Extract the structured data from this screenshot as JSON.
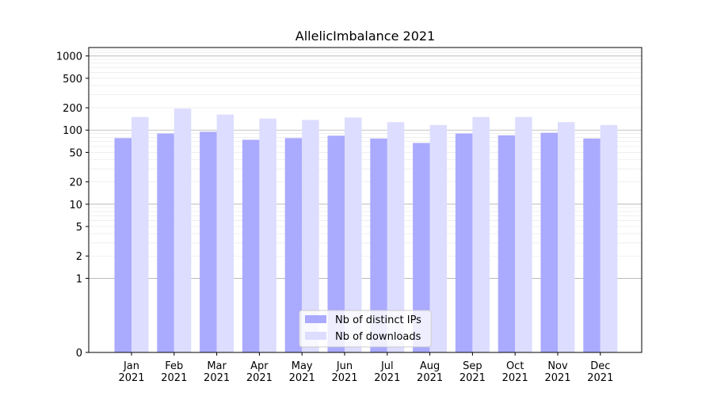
{
  "chart_data": {
    "type": "bar",
    "title": "AllelicImbalance 2021",
    "xlabel": "",
    "ylabel": "",
    "yscale": "symlog",
    "ylim": [
      0,
      1300
    ],
    "yticks": [
      0,
      1,
      2,
      5,
      10,
      20,
      50,
      100,
      200,
      500,
      1000
    ],
    "categories": [
      "Jan\n2021",
      "Feb\n2021",
      "Mar\n2021",
      "Apr\n2021",
      "May\n2021",
      "Jun\n2021",
      "Jul\n2021",
      "Aug\n2021",
      "Sep\n2021",
      "Oct\n2021",
      "Nov\n2021",
      "Dec\n2021"
    ],
    "series": [
      {
        "name": "Nb of distinct IPs",
        "color": "#aaaaff",
        "values": [
          78,
          90,
          95,
          74,
          78,
          84,
          77,
          67,
          90,
          85,
          92,
          77
        ]
      },
      {
        "name": "Nb of downloads",
        "color": "#ddddff",
        "values": [
          150,
          195,
          162,
          143,
          137,
          148,
          128,
          117,
          150,
          150,
          128,
          117
        ]
      }
    ],
    "grid": true,
    "legend": "lower center"
  }
}
